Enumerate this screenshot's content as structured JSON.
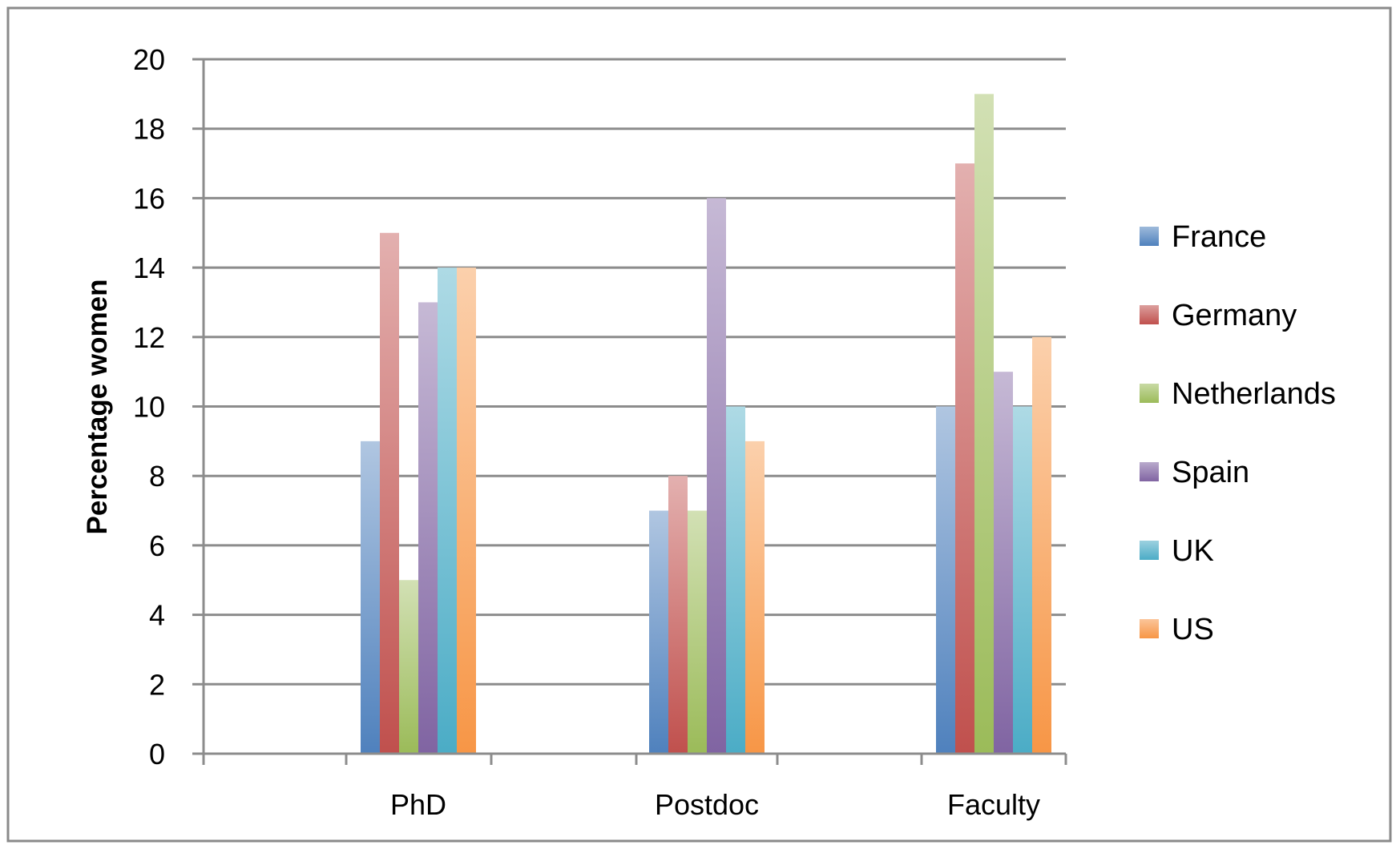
{
  "chart_data": {
    "type": "bar",
    "categories": [
      "PhD",
      "Postdoc",
      "Faculty"
    ],
    "series": [
      {
        "name": "France",
        "values": [
          9,
          7,
          10
        ],
        "color": "#4f81bd"
      },
      {
        "name": "Germany",
        "values": [
          15,
          8,
          17
        ],
        "color": "#c0504d"
      },
      {
        "name": "Netherlands",
        "values": [
          5,
          7,
          19
        ],
        "color": "#9bbb59"
      },
      {
        "name": "Spain",
        "values": [
          13,
          16,
          11
        ],
        "color": "#8064a2"
      },
      {
        "name": "UK",
        "values": [
          14,
          10,
          10
        ],
        "color": "#4bacc6"
      },
      {
        "name": "US",
        "values": [
          14,
          9,
          12
        ],
        "color": "#f79646"
      }
    ],
    "title": "",
    "xlabel": "",
    "ylabel": "Percentage women",
    "ylim": [
      0,
      20
    ],
    "yticks": [
      0,
      2,
      4,
      6,
      8,
      10,
      12,
      14,
      16,
      18,
      20
    ],
    "grid": true,
    "legend_position": "right"
  }
}
